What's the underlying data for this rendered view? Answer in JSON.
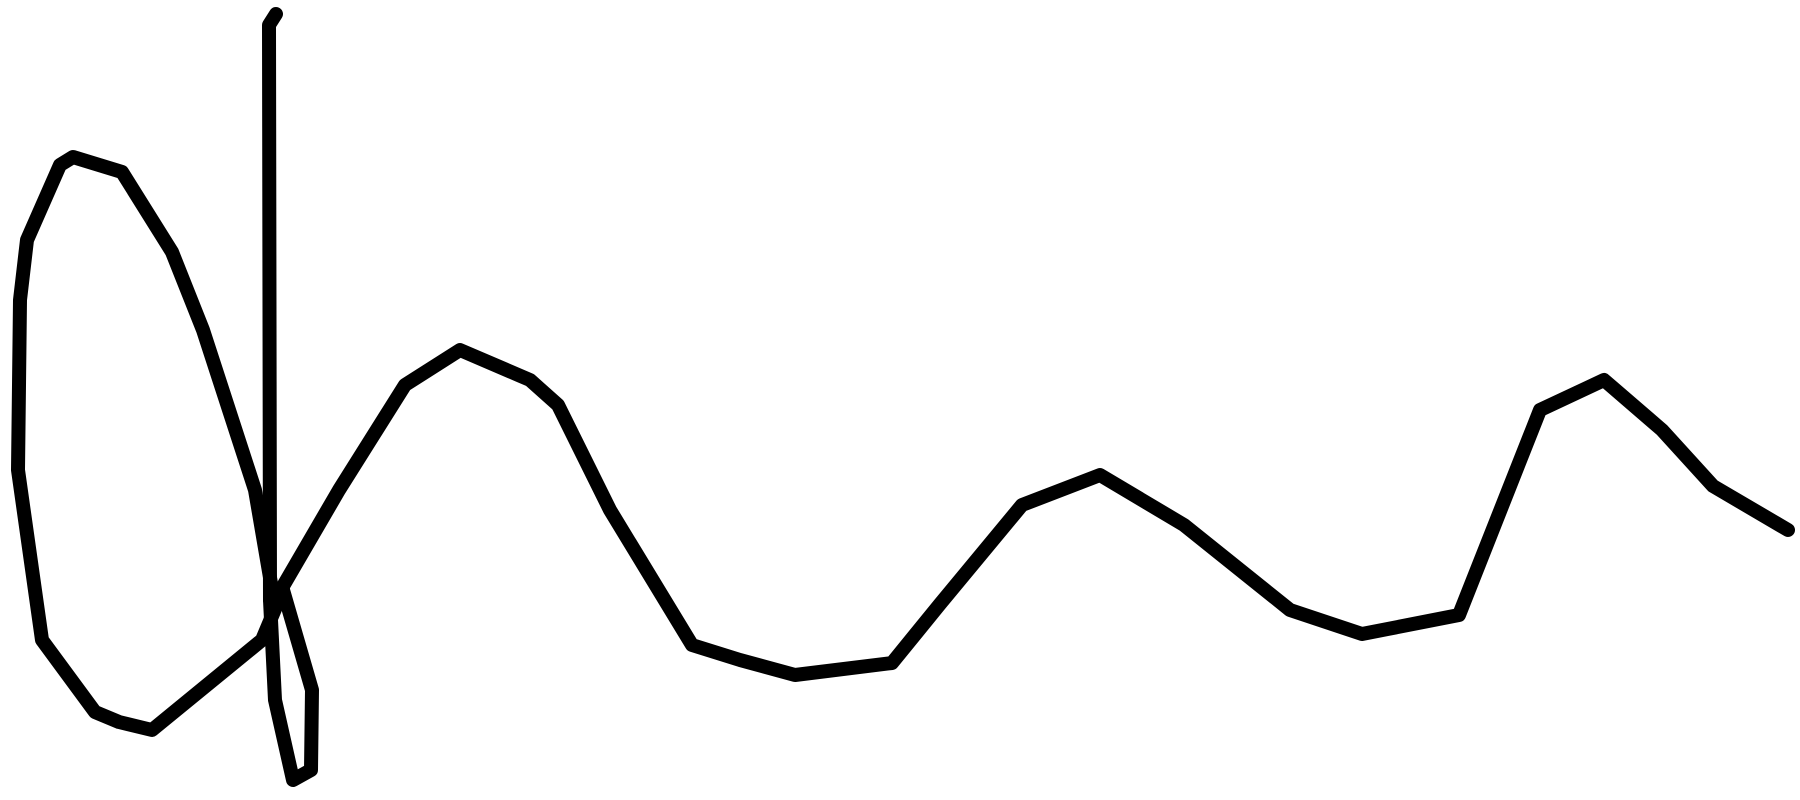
{
  "image": {
    "kind": "handwritten-signature",
    "ink_color": "#000000",
    "background_color": "#ffffff"
  }
}
